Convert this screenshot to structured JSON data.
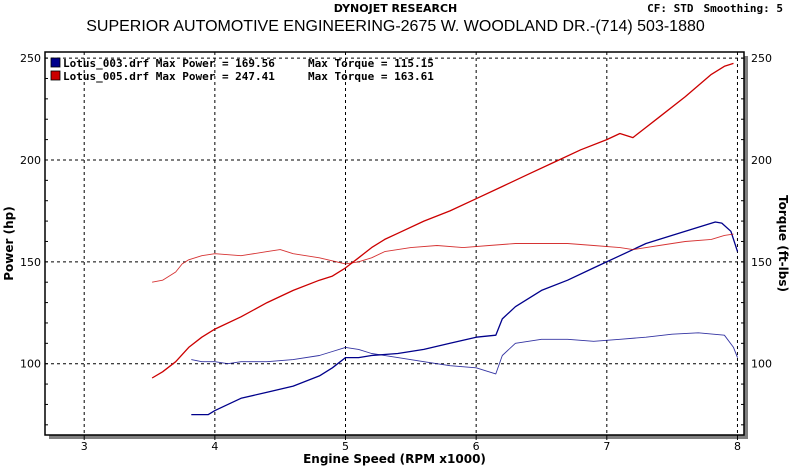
{
  "header": {
    "title": "DYNOJET RESEARCH",
    "subtitle": "SUPERIOR AUTOMOTIVE ENGINEERING-2675 W. WOODLAND DR.-(714) 503-1880",
    "cf": "CF: STD",
    "smoothing": "Smoothing: 5"
  },
  "colors": {
    "run1": "#00008b",
    "run2": "#cc0000",
    "grid": "#000000",
    "frame": "#000000"
  },
  "chart_data": {
    "type": "line",
    "xlabel": "Engine Speed (RPM x1000)",
    "ylabel_left": "Power (hp)",
    "ylabel_right": "Torque (ft-lbs)",
    "xlim": [
      2.7,
      8.05
    ],
    "ylim": [
      65,
      253
    ],
    "x_ticks": [
      "3",
      "4",
      "5",
      "6",
      "7",
      "8"
    ],
    "y_ticks": [
      "100",
      "150",
      "200",
      "250"
    ],
    "grid": true,
    "legend_position": "top-left",
    "legend": [
      {
        "file": "Lotus_003.drf",
        "power_label": "Max Power = 169.56",
        "torque_label": "Max Torque = 115.15"
      },
      {
        "file": "Lotus_005.drf",
        "power_label": "Max Power = 247.41",
        "torque_label": "Max Torque = 163.61"
      }
    ],
    "series": [
      {
        "name": "Lotus_003.drf Power",
        "color_key": "run1",
        "x": [
          3.82,
          3.95,
          4.0,
          4.1,
          4.2,
          4.4,
          4.6,
          4.8,
          4.9,
          5.0,
          5.1,
          5.2,
          5.4,
          5.6,
          5.8,
          6.0,
          6.15,
          6.2,
          6.3,
          6.5,
          6.7,
          6.9,
          7.1,
          7.3,
          7.5,
          7.7,
          7.83,
          7.88,
          7.95,
          8.0
        ],
        "y": [
          75,
          75,
          77,
          80,
          83,
          86,
          89,
          94,
          98,
          103,
          103,
          104,
          105,
          107,
          110,
          113,
          114,
          122,
          128,
          136,
          141,
          147,
          153,
          159,
          163,
          167,
          169.56,
          169,
          165,
          155
        ]
      },
      {
        "name": "Lotus_003.drf Torque",
        "color_key": "run1",
        "x": [
          3.82,
          3.9,
          4.0,
          4.1,
          4.2,
          4.4,
          4.6,
          4.8,
          4.9,
          5.0,
          5.1,
          5.2,
          5.4,
          5.6,
          5.8,
          6.0,
          6.15,
          6.2,
          6.3,
          6.5,
          6.7,
          6.9,
          7.1,
          7.3,
          7.5,
          7.7,
          7.9,
          7.97,
          8.0
        ],
        "y": [
          102,
          101,
          101,
          100,
          101,
          101,
          102,
          104,
          106,
          108,
          107,
          105,
          103,
          101,
          99,
          98,
          95,
          104,
          110,
          112,
          112,
          111,
          112,
          113,
          114.5,
          115.15,
          114,
          108,
          103
        ]
      },
      {
        "name": "Lotus_005.drf Power",
        "color_key": "run2",
        "x": [
          3.52,
          3.6,
          3.7,
          3.8,
          3.9,
          4.0,
          4.2,
          4.4,
          4.6,
          4.8,
          4.9,
          5.0,
          5.1,
          5.2,
          5.3,
          5.4,
          5.6,
          5.8,
          6.0,
          6.2,
          6.4,
          6.6,
          6.8,
          7.0,
          7.1,
          7.2,
          7.4,
          7.6,
          7.8,
          7.9,
          7.97
        ],
        "y": [
          93,
          96,
          101,
          108,
          113,
          117,
          123,
          130,
          136,
          141,
          143,
          147,
          152,
          157,
          161,
          164,
          170,
          175,
          181,
          187,
          193,
          199,
          205,
          210,
          213,
          211,
          221,
          231,
          242,
          246,
          247.41
        ]
      },
      {
        "name": "Lotus_005.drf Torque",
        "color_key": "run2",
        "x": [
          3.52,
          3.6,
          3.7,
          3.75,
          3.8,
          3.9,
          4.0,
          4.2,
          4.4,
          4.5,
          4.6,
          4.8,
          5.0,
          5.1,
          5.2,
          5.3,
          5.5,
          5.7,
          5.9,
          6.1,
          6.3,
          6.5,
          6.7,
          6.9,
          7.1,
          7.2,
          7.4,
          7.6,
          7.8,
          7.9,
          7.97
        ],
        "y": [
          140,
          141,
          145,
          149,
          151,
          153,
          154,
          153,
          155,
          156,
          154,
          152,
          149,
          150,
          152,
          155,
          157,
          158,
          157,
          158,
          159,
          159,
          159,
          158,
          157,
          156,
          158,
          160,
          161,
          163,
          163.61
        ]
      }
    ]
  }
}
